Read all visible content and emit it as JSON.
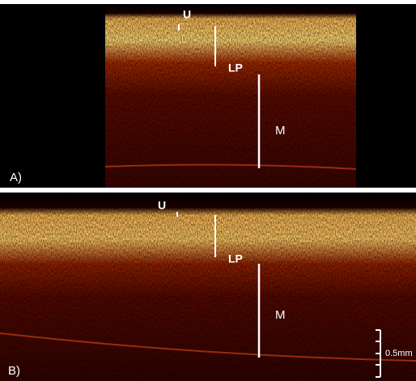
{
  "panels": [
    {
      "label": "A)",
      "annotations": [
        "U",
        "LP",
        "M"
      ]
    },
    {
      "label": "B)",
      "annotations": [
        "U",
        "LP",
        "M"
      ],
      "scale_bar": "0.5mm"
    }
  ]
}
